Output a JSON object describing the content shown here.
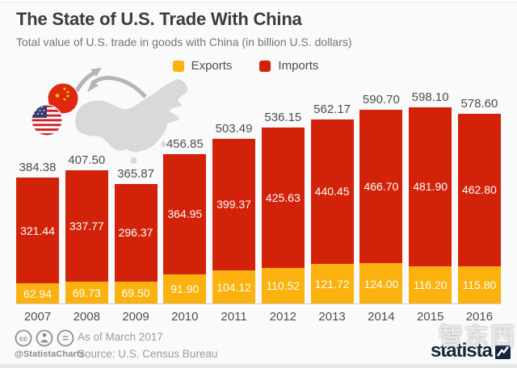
{
  "header": {
    "title": "The State of U.S. Trade With China",
    "subtitle": "Total value of U.S. trade in goods with China (in billion U.S. dollars)"
  },
  "legend": {
    "exports": "Exports",
    "imports": "Imports"
  },
  "colors": {
    "exports": "#fbb10e",
    "imports": "#d2230a",
    "background": "#fafafa",
    "brand_navy": "#16263c",
    "map_gray": "#d9d9d9",
    "arrow_gray": "#b5b5b5"
  },
  "chart_data": {
    "type": "bar",
    "stacked": true,
    "title": "The State of U.S. Trade With China",
    "subtitle": "Total value of U.S. trade in goods with China (in billion U.S. dollars)",
    "unit": "billion U.S. dollars",
    "categories": [
      "2007",
      "2008",
      "2009",
      "2010",
      "2011",
      "2012",
      "2013",
      "2014",
      "2015",
      "2016"
    ],
    "series": [
      {
        "name": "Exports",
        "color": "#fbb10e",
        "values": [
          62.94,
          69.73,
          69.5,
          91.9,
          104.12,
          110.52,
          121.72,
          124.0,
          116.2,
          115.8
        ]
      },
      {
        "name": "Imports",
        "color": "#d2230a",
        "values": [
          321.44,
          337.77,
          296.37,
          364.95,
          399.37,
          425.63,
          440.45,
          466.7,
          481.9,
          462.8
        ]
      }
    ],
    "totals": [
      384.38,
      407.5,
      365.87,
      456.85,
      503.49,
      536.15,
      562.17,
      590.7,
      598.1,
      578.6
    ],
    "legend_position": "top",
    "grid": false,
    "value_labels": "inside-segments-and-totals-above"
  },
  "footer": {
    "as_of": "As of March 2017",
    "source": "Source: U.S. Census Bureau",
    "credit": "@StatistaCharts",
    "brand": "statista",
    "watermark": "智东西",
    "license_icons": [
      "cc",
      "attribution",
      "equals"
    ]
  }
}
